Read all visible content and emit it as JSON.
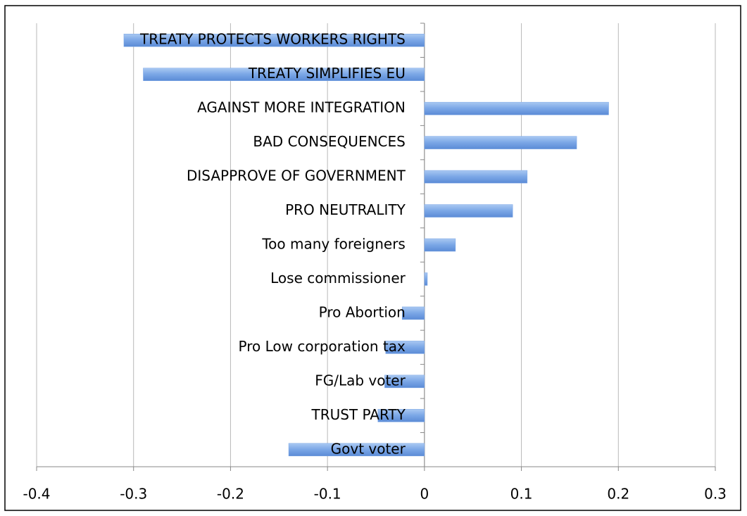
{
  "chart_data": {
    "type": "barh",
    "categories": [
      "TREATY PROTECTS WORKERS RIGHTS",
      "TREATY SIMPLIFIES EU",
      "AGAINST MORE INTEGRATION",
      "BAD CONSEQUENCES",
      "DISAPPROVE OF GOVERNMENT",
      "PRO NEUTRALITY",
      "Too many foreigners",
      "Lose commissioner",
      "Pro Abortion",
      "Pro Low corporation tax",
      "FG/Lab voter",
      "TRUST PARTY",
      "Govt voter"
    ],
    "values": [
      -0.31,
      -0.29,
      0.19,
      0.157,
      0.106,
      0.091,
      0.032,
      0.003,
      -0.023,
      -0.04,
      -0.041,
      -0.048,
      -0.14
    ],
    "color": "#7aa6e6",
    "xlim": [
      -0.4,
      0.3
    ],
    "xticks": [
      -0.4,
      -0.3,
      -0.2,
      -0.1,
      0,
      0.1,
      0.2,
      0.3
    ],
    "grid": true
  }
}
